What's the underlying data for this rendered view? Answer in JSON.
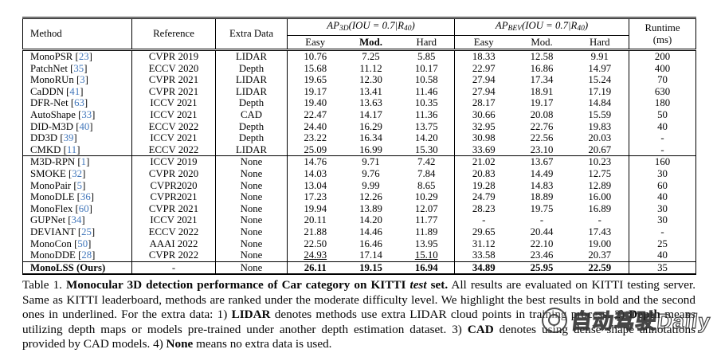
{
  "colors": {
    "citation": "#4277bb",
    "text": "#050505",
    "background": "#ffffff"
  },
  "table": {
    "header": {
      "method": "Method",
      "reference": "Reference",
      "extra_data": "Extra Data",
      "ap3d": {
        "prefix": "AP",
        "sub1": "3D",
        "middle": "(IOU = 0.7|R",
        "sub2": "40",
        "suffix": ")"
      },
      "apbev": {
        "prefix": "AP",
        "sub1": "BEV",
        "middle": "(IOU = 0.7|R",
        "sub2": "40",
        "suffix": ")"
      },
      "difficulty": [
        "Easy",
        "Mod.",
        "Hard"
      ],
      "runtime_line1": "Runtime",
      "runtime_line2": "(ms)"
    },
    "groups": [
      {
        "name": "extra-data-methods",
        "rows": [
          {
            "method": "MonoPSR",
            "cite": "23",
            "reference": "CVPR 2019",
            "extra": "LIDAR",
            "ap3d": [
              "10.76",
              "7.25",
              "5.85"
            ],
            "apbev": [
              "18.33",
              "12.58",
              "9.91"
            ],
            "runtime": "200"
          },
          {
            "method": "PatchNet",
            "cite": "35",
            "reference": "ECCV 2020",
            "extra": "Depth",
            "ap3d": [
              "15.68",
              "11.12",
              "10.17"
            ],
            "apbev": [
              "22.97",
              "16.86",
              "14.97"
            ],
            "runtime": "400"
          },
          {
            "method": "MonoRUn",
            "cite": "3",
            "reference": "CVPR 2021",
            "extra": "LIDAR",
            "ap3d": [
              "19.65",
              "12.30",
              "10.58"
            ],
            "apbev": [
              "27.94",
              "17.34",
              "15.24"
            ],
            "runtime": "70"
          },
          {
            "method": "CaDDN",
            "cite": "41",
            "reference": "CVPR 2021",
            "extra": "LIDAR",
            "ap3d": [
              "19.17",
              "13.41",
              "11.46"
            ],
            "apbev": [
              "27.94",
              "18.91",
              "17.19"
            ],
            "runtime": "630"
          },
          {
            "method": "DFR-Net",
            "cite": "63",
            "reference": "ICCV 2021",
            "extra": "Depth",
            "ap3d": [
              "19.40",
              "13.63",
              "10.35"
            ],
            "apbev": [
              "28.17",
              "19.17",
              "14.84"
            ],
            "runtime": "180"
          },
          {
            "method": "AutoShape",
            "cite": "33",
            "reference": "ICCV 2021",
            "extra": "CAD",
            "ap3d": [
              "22.47",
              "14.17",
              "11.36"
            ],
            "apbev": [
              "30.66",
              "20.08",
              "15.59"
            ],
            "runtime": "50"
          },
          {
            "method": "DID-M3D",
            "cite": "40",
            "reference": "ECCV 2022",
            "extra": "Depth",
            "ap3d": [
              "24.40",
              "16.29",
              "13.75"
            ],
            "apbev": [
              "32.95",
              "22.76",
              "19.83"
            ],
            "runtime": "40"
          },
          {
            "method": "DD3D",
            "cite": "39",
            "reference": "ICCV 2021",
            "extra": "Depth",
            "ap3d": [
              "23.22",
              "16.34",
              "14.20"
            ],
            "apbev": [
              "30.98",
              "22.56",
              "20.03"
            ],
            "runtime": "-"
          },
          {
            "method": "CMKD",
            "cite": "11",
            "reference": "ECCV 2022",
            "extra": "LIDAR",
            "ap3d": [
              "25.09",
              "16.99",
              "15.30"
            ],
            "apbev": [
              "33.69",
              "23.10",
              "20.67"
            ],
            "runtime": "-"
          }
        ]
      },
      {
        "name": "no-extra-data-methods",
        "rows": [
          {
            "method": "M3D-RPN",
            "cite": "1",
            "reference": "ICCV 2019",
            "extra": "None",
            "ap3d": [
              "14.76",
              "9.71",
              "7.42"
            ],
            "apbev": [
              "21.02",
              "13.67",
              "10.23"
            ],
            "runtime": "160"
          },
          {
            "method": "SMOKE",
            "cite": "32",
            "reference": "CVPR 2020",
            "extra": "None",
            "ap3d": [
              "14.03",
              "9.76",
              "7.84"
            ],
            "apbev": [
              "20.83",
              "14.49",
              "12.75"
            ],
            "runtime": "30"
          },
          {
            "method": "MonoPair",
            "cite": "5",
            "reference": "CVPR2020",
            "extra": "None",
            "ap3d": [
              "13.04",
              "9.99",
              "8.65"
            ],
            "apbev": [
              "19.28",
              "14.83",
              "12.89"
            ],
            "runtime": "60"
          },
          {
            "method": "MonoDLE",
            "cite": "36",
            "reference": "CVPR2021",
            "extra": "None",
            "ap3d": [
              "17.23",
              "12.26",
              "10.29"
            ],
            "apbev": [
              "24.79",
              "18.89",
              "16.00"
            ],
            "runtime": "40"
          },
          {
            "method": "MonoFlex",
            "cite": "60",
            "reference": "CVPR 2021",
            "extra": "None",
            "ap3d": [
              "19.94",
              "13.89",
              "12.07"
            ],
            "apbev": [
              "28.23",
              "19.75",
              "16.89"
            ],
            "runtime": "30"
          },
          {
            "method": "GUPNet",
            "cite": "34",
            "reference": "ICCV 2021",
            "extra": "None",
            "ap3d": [
              "20.11",
              "14.20",
              "11.77"
            ],
            "apbev": [
              "-",
              "-",
              "-"
            ],
            "runtime": "30"
          },
          {
            "method": "DEVIANT",
            "cite": "25",
            "reference": "ECCV 2022",
            "extra": "None",
            "ap3d": [
              "21.88",
              "14.46",
              "11.89"
            ],
            "apbev": [
              "29.65",
              "20.44",
              "17.43"
            ],
            "runtime": "-"
          },
          {
            "method": "MonoCon",
            "cite": "50",
            "reference": "AAAI 2022",
            "extra": "None",
            "ap3d": [
              "22.50",
              "16.46",
              "13.95"
            ],
            "apbev": [
              "31.12",
              "22.10",
              "19.00"
            ],
            "runtime": "25"
          },
          {
            "method": "MonoDDE",
            "cite": "28",
            "reference": "CVPR 2022",
            "extra": "None",
            "ap3d": [
              "24.93",
              "17.14",
              "15.10"
            ],
            "apbev": [
              "33.58",
              "23.46",
              "20.37"
            ],
            "runtime": "40",
            "underline_ap3d": [
              0,
              2
            ]
          }
        ]
      },
      {
        "name": "ours",
        "rows": [
          {
            "method": "MonoLSS (Ours)",
            "cite": "",
            "reference": "-",
            "extra": "None",
            "ap3d": [
              "26.11",
              "19.15",
              "16.94"
            ],
            "apbev": [
              "34.89",
              "25.95",
              "22.59"
            ],
            "runtime": "35",
            "bold": true
          }
        ]
      }
    ]
  },
  "caption": {
    "segments": [
      {
        "style": "plain",
        "text": "Table 1. "
      },
      {
        "style": "bold",
        "text": "Monocular 3D detection performance of Car category on KITTI "
      },
      {
        "style": "bold-italic",
        "text": "test"
      },
      {
        "style": "bold",
        "text": " set."
      },
      {
        "style": "plain",
        "text": " All results are evaluated on KITTI testing server. Same as KITTI leaderboard, methods are ranked under the moderate difficulty level. We highlight the best results in bold and the second ones in underlined. For the extra data: 1) "
      },
      {
        "style": "bold",
        "text": "LIDAR"
      },
      {
        "style": "plain",
        "text": " denotes methods use extra LIDAR cloud points in training process. 2) "
      },
      {
        "style": "bold",
        "text": "Depth"
      },
      {
        "style": "plain",
        "text": " means utilizing depth maps or models pre-trained under another depth estimation dataset. 3) "
      },
      {
        "style": "bold",
        "text": "CAD"
      },
      {
        "style": "plain",
        "text": " denotes using dense shape annotations provided by CAD models. 4) "
      },
      {
        "style": "bold",
        "text": "None"
      },
      {
        "style": "plain",
        "text": " means no extra data is used."
      }
    ]
  },
  "watermark": {
    "text": "自动驾驶Daily",
    "icon": "logo-circle-icon"
  }
}
